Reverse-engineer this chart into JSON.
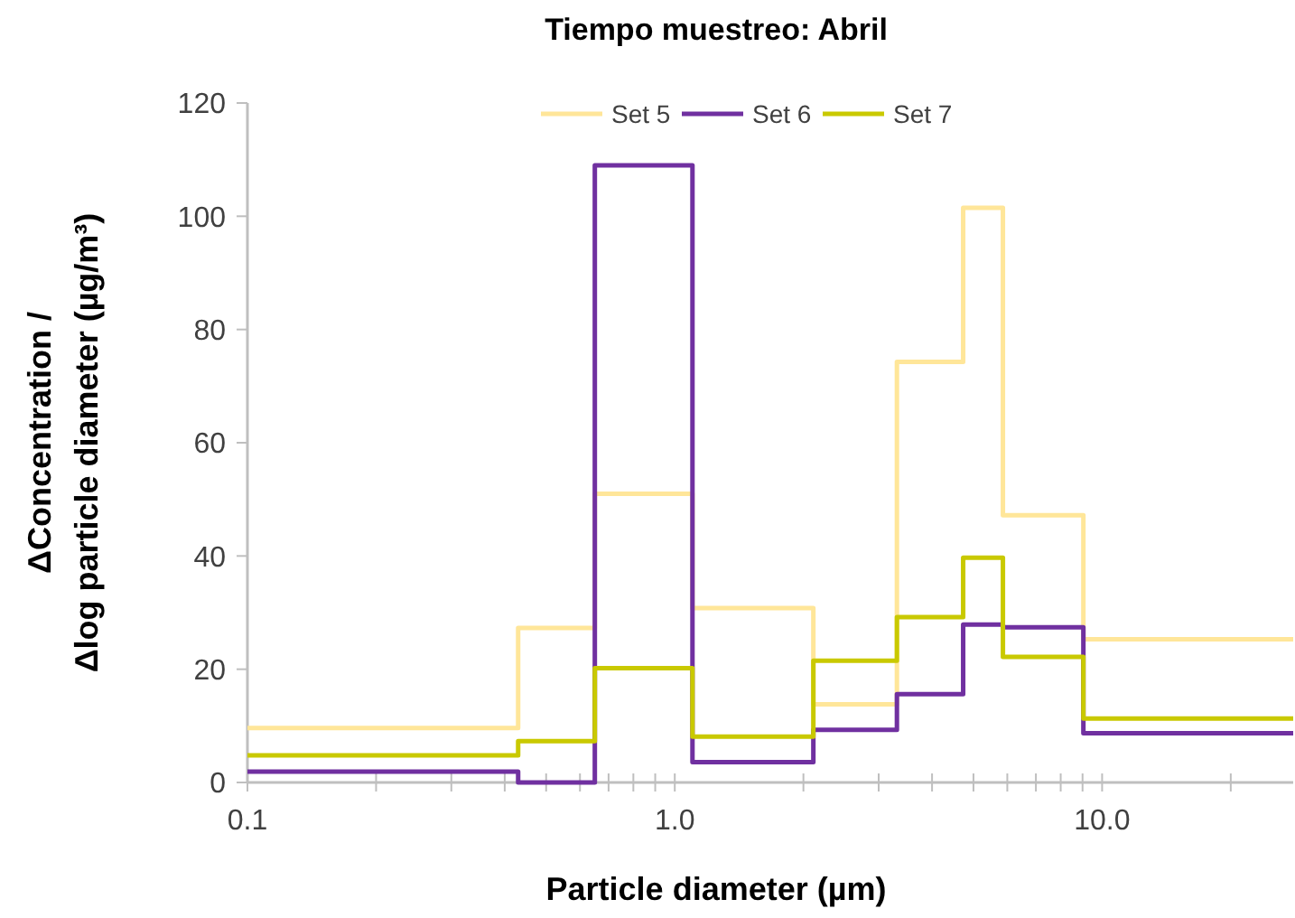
{
  "chart_data": {
    "type": "step",
    "title": "Tiempo muestreo: Abril",
    "xlabel": "Particle diameter (µm)",
    "ylabel": "ΔConcentration /\nΔlog particle diameter  (µg/m³)",
    "x": [
      0.1,
      0.43,
      0.65,
      1.1,
      2.11,
      3.31,
      4.73,
      5.86,
      9.04,
      28
    ],
    "series": [
      {
        "name": "Set 5",
        "color": "#ffe699",
        "values": [
          9.6,
          27.3,
          51,
          30.8,
          13.8,
          74.3,
          101.5,
          47.2,
          25.3,
          25.3
        ]
      },
      {
        "name": "Set 6",
        "color": "#7030a0",
        "values": [
          1.9,
          0,
          109,
          3.6,
          9.3,
          15.6,
          27.9,
          27.4,
          8.7,
          8.7
        ]
      },
      {
        "name": "Set 7",
        "color": "#c9c900",
        "values": [
          4.8,
          7.3,
          20.2,
          8.1,
          21.5,
          29.2,
          39.7,
          22.2,
          11.3,
          11.3
        ]
      }
    ],
    "log": "x",
    "xlim": [
      0.1,
      28
    ],
    "xticks": [
      {
        "value": 0.1,
        "label": "0.1"
      },
      {
        "value": 0.2,
        "label": null
      },
      {
        "value": 0.3,
        "label": null
      },
      {
        "value": 0.4,
        "label": null
      },
      {
        "value": 0.5,
        "label": null
      },
      {
        "value": 0.6,
        "label": null
      },
      {
        "value": 0.7,
        "label": null
      },
      {
        "value": 0.8,
        "label": null
      },
      {
        "value": 0.9,
        "label": null
      },
      {
        "value": 1,
        "label": "1.0"
      },
      {
        "value": 2,
        "label": null
      },
      {
        "value": 3,
        "label": null
      },
      {
        "value": 4,
        "label": null
      },
      {
        "value": 5,
        "label": null
      },
      {
        "value": 6,
        "label": null
      },
      {
        "value": 7,
        "label": null
      },
      {
        "value": 8,
        "label": null
      },
      {
        "value": 9,
        "label": null
      },
      {
        "value": 10,
        "label": "10.0"
      },
      {
        "value": 20,
        "label": null
      }
    ],
    "ylim": [
      0,
      120
    ],
    "yticks": [
      0,
      20,
      40,
      60,
      80,
      100,
      120
    ],
    "grid": false,
    "legend": "top",
    "line_style": "solid",
    "marker": "none"
  }
}
